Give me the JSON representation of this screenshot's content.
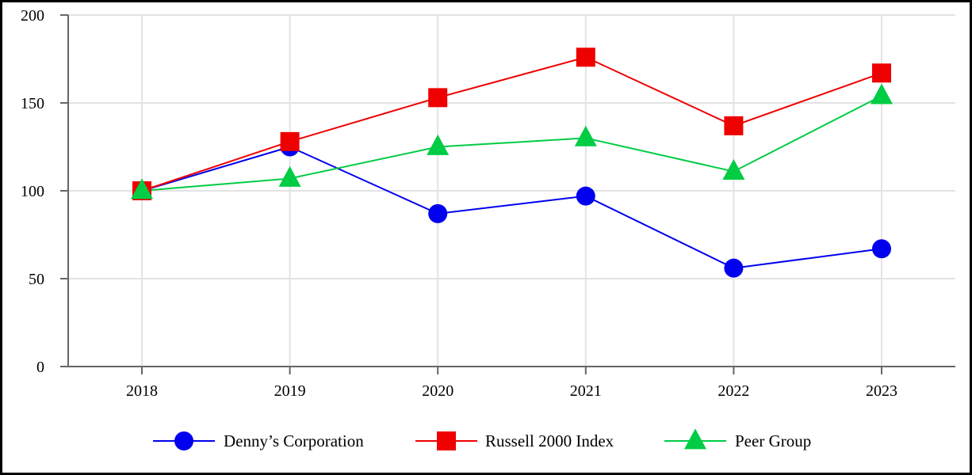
{
  "chart_data": {
    "type": "line",
    "title": "",
    "xlabel": "",
    "ylabel": "",
    "categories": [
      "2018",
      "2019",
      "2020",
      "2021",
      "2022",
      "2023"
    ],
    "ylim": [
      0,
      200
    ],
    "yticks": [
      0,
      50,
      100,
      150,
      200
    ],
    "grid": true,
    "legend_position": "bottom",
    "series": [
      {
        "name": "Denny’s Corporation",
        "values": [
          100,
          125,
          87,
          97,
          56,
          67
        ],
        "color": "#0000ee",
        "marker": "circle"
      },
      {
        "name": "Russell 2000 Index",
        "values": [
          100,
          128,
          153,
          176,
          137,
          167
        ],
        "color": "#ee0000",
        "marker": "square"
      },
      {
        "name": "Peer Group",
        "values": [
          100,
          107,
          125,
          130,
          111,
          154
        ],
        "color": "#00cc44",
        "marker": "triangle"
      }
    ]
  }
}
